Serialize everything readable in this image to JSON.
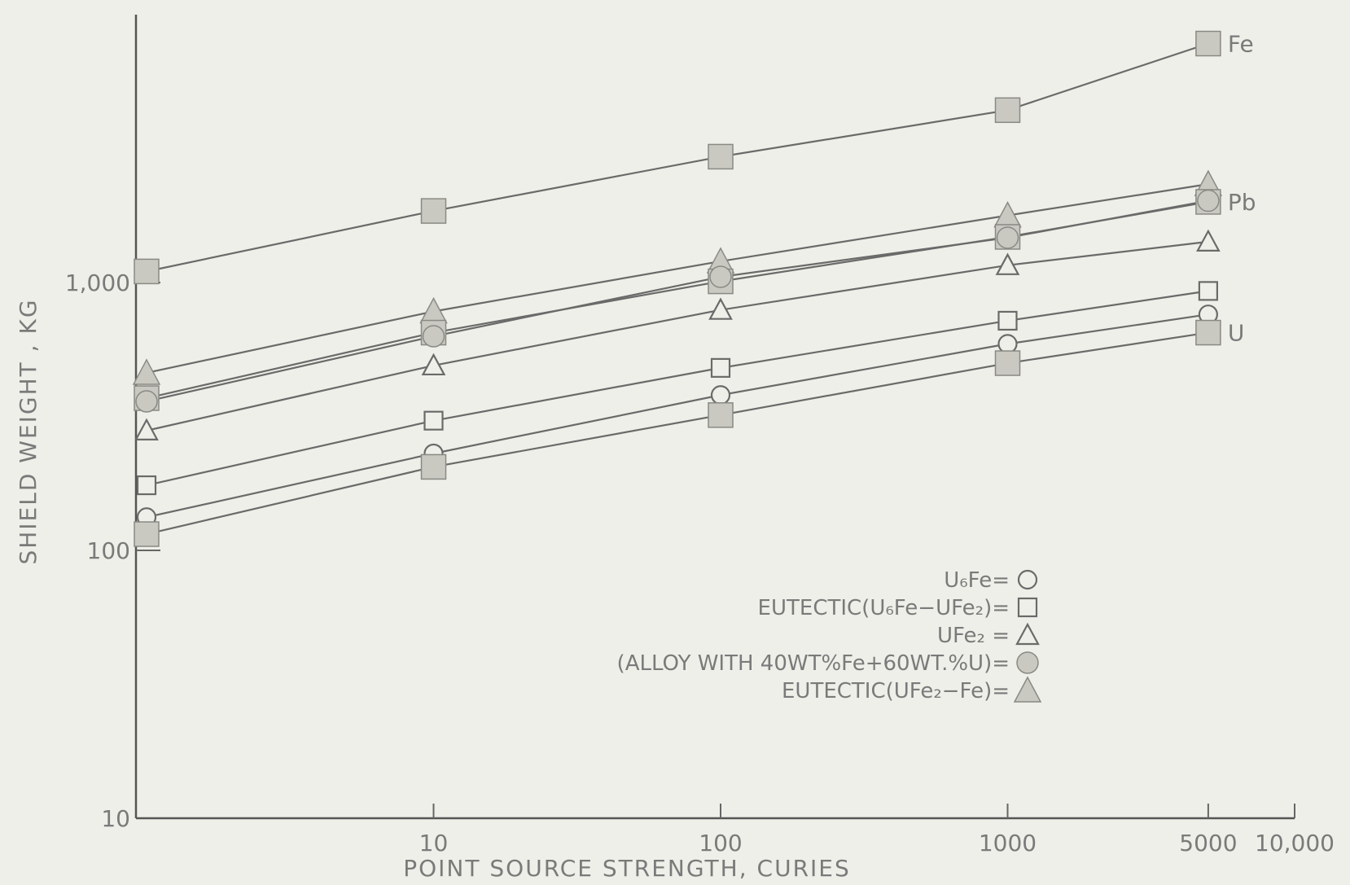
{
  "chart_data": {
    "type": "line",
    "xscale": "log",
    "yscale": "log",
    "xlabel": "POINT  SOURCE  STRENGTH,  CURIES",
    "ylabel": "SHIELD  WEIGHT , KG",
    "xlim": [
      1,
      10000
    ],
    "ylim": [
      10,
      10000
    ],
    "x_ticks": [
      {
        "value": 10,
        "label": "10"
      },
      {
        "value": 100,
        "label": "100"
      },
      {
        "value": 1000,
        "label": "1000"
      },
      {
        "value": 5000,
        "label": "5000"
      },
      {
        "value": 10000,
        "label": "10,000"
      }
    ],
    "y_ticks": [
      {
        "value": 10,
        "label": "10"
      },
      {
        "value": 100,
        "label": "100"
      },
      {
        "value": 1000,
        "label": "1,000"
      }
    ],
    "x": [
      1,
      10,
      100,
      1000,
      5000
    ],
    "series": [
      {
        "name": "Fe",
        "marker": "filled-square",
        "values": [
          1100,
          1850,
          2950,
          4400,
          7800
        ]
      },
      {
        "name": "EUTECTIC(UFe2-Fe)",
        "marker": "filled-triangle",
        "values": [
          460,
          780,
          1200,
          1780,
          2330
        ]
      },
      {
        "name": "Pb",
        "marker": "filled-square",
        "values": [
          370,
          650,
          1010,
          1480,
          2000
        ]
      },
      {
        "name": "(ALLOY WITH 40WT%Fe+60WT.%U)",
        "marker": "filled-circle",
        "values": [
          360,
          630,
          1050,
          1470,
          2020
        ]
      },
      {
        "name": "UFe2",
        "marker": "open-triangle",
        "values": [
          280,
          490,
          790,
          1160,
          1420
        ]
      },
      {
        "name": "EUTECTIC(U6Fe-UFe2)",
        "marker": "open-square",
        "values": [
          175,
          305,
          480,
          720,
          930
        ]
      },
      {
        "name": "U6Fe",
        "marker": "open-circle",
        "values": [
          133,
          230,
          380,
          590,
          760
        ]
      },
      {
        "name": "U",
        "marker": "filled-square",
        "values": [
          115,
          205,
          320,
          500,
          650
        ]
      }
    ],
    "series_labels": [
      {
        "series": 0,
        "text": "Fe"
      },
      {
        "series": 2,
        "text": "Pb"
      },
      {
        "series": 7,
        "text": "U"
      }
    ],
    "legend": {
      "placement": "bottom-right",
      "entries": [
        {
          "text": "U₆Fe=",
          "marker": "open-circle"
        },
        {
          "text": "EUTECTIC(U₆Fe−UFe₂)=",
          "marker": "open-square"
        },
        {
          "text": "UFe₂ =",
          "marker": "open-triangle"
        },
        {
          "text": "(ALLOY WITH 40WT%Fe+60WT.%U)=",
          "marker": "filled-circle"
        },
        {
          "text": "EUTECTIC(UFe₂−Fe)=",
          "marker": "filled-triangle"
        }
      ]
    },
    "grid": false
  }
}
